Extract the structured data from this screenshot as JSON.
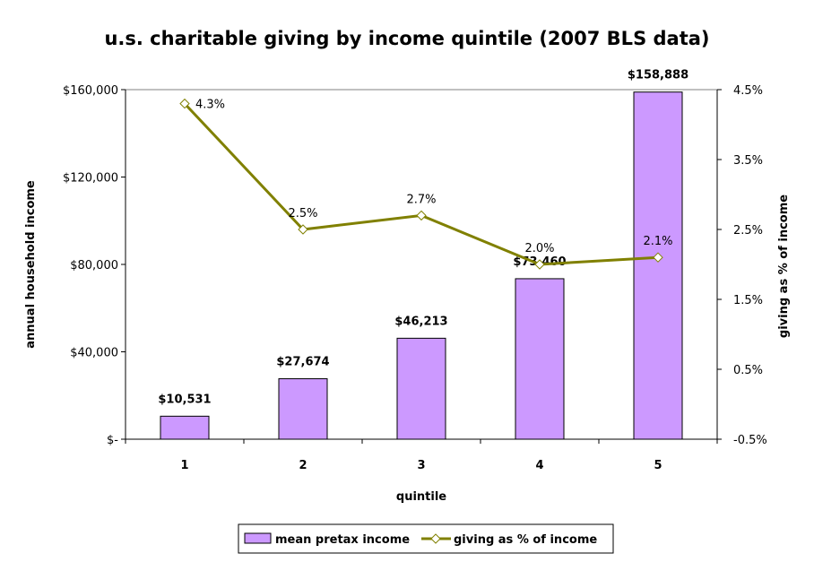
{
  "chart_data": {
    "type": "bar+line",
    "title": "u.s. charitable giving by income quintile (2007 BLS data)",
    "xlabel": "quintile",
    "ylabel": "annual household income",
    "y2label": "giving as % of income",
    "categories": [
      "1",
      "2",
      "3",
      "4",
      "5"
    ],
    "series": [
      {
        "name": "mean pretax income",
        "type": "bar",
        "axis": "left",
        "values": [
          10531,
          27674,
          46213,
          73460,
          158888
        ],
        "labels": [
          "$10,531",
          "$27,674",
          "$46,213",
          "$73,460",
          "$158,888"
        ],
        "color": "#cc99ff"
      },
      {
        "name": "giving as % of income",
        "type": "line",
        "axis": "right",
        "values": [
          4.3,
          2.5,
          2.7,
          2.0,
          2.1
        ],
        "labels": [
          "4.3%",
          "2.5%",
          "2.7%",
          "2.0%",
          "2.1%"
        ],
        "color": "#808000"
      }
    ],
    "ylim": [
      0,
      160000
    ],
    "y2lim": [
      -0.5,
      4.5
    ],
    "yticks": [
      0,
      40000,
      80000,
      120000,
      160000
    ],
    "ytick_labels": [
      "$-",
      "$40,000",
      "$80,000",
      "$120,000",
      "$160,000"
    ],
    "y2ticks": [
      -0.5,
      0.5,
      1.5,
      2.5,
      3.5,
      4.5
    ],
    "y2tick_labels": [
      "-0.5%",
      "0.5%",
      "1.5%",
      "2.5%",
      "3.5%",
      "4.5%"
    ],
    "grid": "top line only",
    "legend": "bottom"
  }
}
